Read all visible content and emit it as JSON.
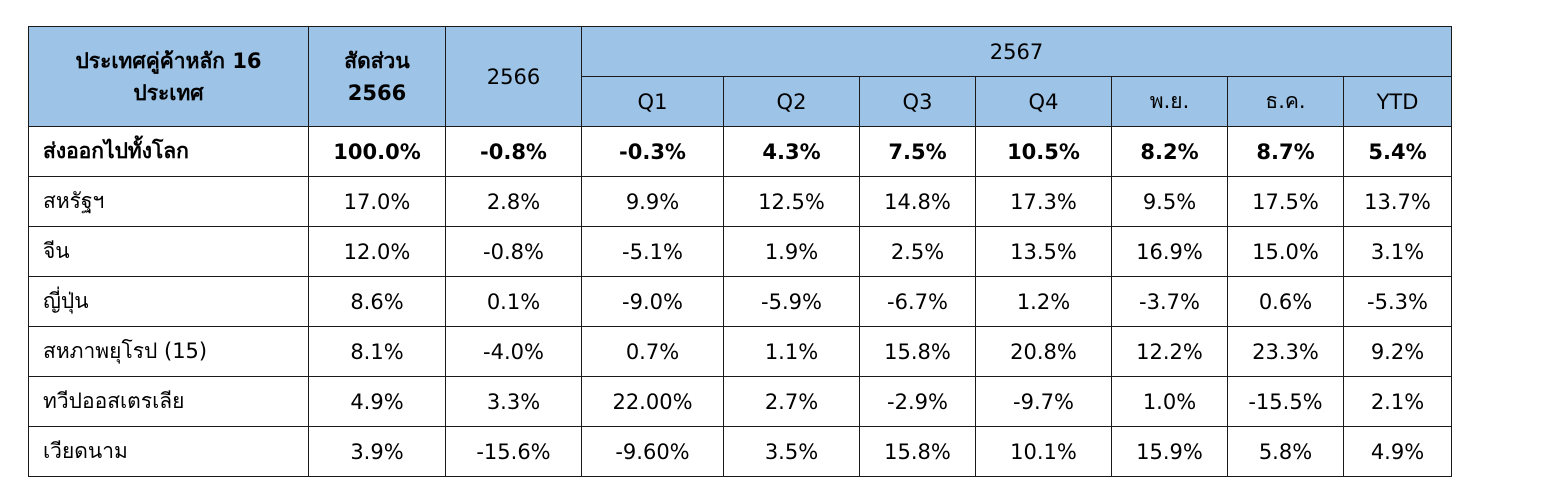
{
  "header": {
    "country_line1": "ประเทศคู่ค้าหลัก 16",
    "country_line2": "ประเทศ",
    "share_line1": "สัดส่วน",
    "share_line2": "2566",
    "year_prev": "2566",
    "year_curr": "2567",
    "periods": [
      "Q1",
      "Q2",
      "Q3",
      "Q4",
      "พ.ย.",
      "ธ.ค.",
      "YTD"
    ]
  },
  "rows": [
    {
      "country": "ส่งออกไปทั้งโลก",
      "values": [
        "100.0%",
        "-0.8%",
        "-0.3%",
        "4.3%",
        "7.5%",
        "10.5%",
        "8.2%",
        "8.7%",
        "5.4%"
      ]
    },
    {
      "country": "สหรัฐฯ",
      "values": [
        "17.0%",
        "2.8%",
        "9.9%",
        "12.5%",
        "14.8%",
        "17.3%",
        "9.5%",
        "17.5%",
        "13.7%"
      ]
    },
    {
      "country": "จีน",
      "values": [
        "12.0%",
        "-0.8%",
        "-5.1%",
        "1.9%",
        "2.5%",
        "13.5%",
        "16.9%",
        "15.0%",
        "3.1%"
      ]
    },
    {
      "country": "ญี่ปุ่น",
      "values": [
        "8.6%",
        "0.1%",
        "-9.0%",
        "-5.9%",
        "-6.7%",
        "1.2%",
        "-3.7%",
        "0.6%",
        "-5.3%"
      ]
    },
    {
      "country": "สหภาพยุโรป (15)",
      "values": [
        "8.1%",
        "-4.0%",
        "0.7%",
        "1.1%",
        "15.8%",
        "20.8%",
        "12.2%",
        "23.3%",
        "9.2%"
      ]
    },
    {
      "country": "ทวีปออสเตรเลีย",
      "values": [
        "4.9%",
        "3.3%",
        "22.00%",
        "2.7%",
        "-2.9%",
        "-9.7%",
        "1.0%",
        "-15.5%",
        "2.1%"
      ]
    },
    {
      "country": "เวียดนาม",
      "values": [
        "3.9%",
        "-15.6%",
        "-9.60%",
        "3.5%",
        "15.8%",
        "10.1%",
        "15.9%",
        "5.8%",
        "4.9%"
      ]
    }
  ]
}
